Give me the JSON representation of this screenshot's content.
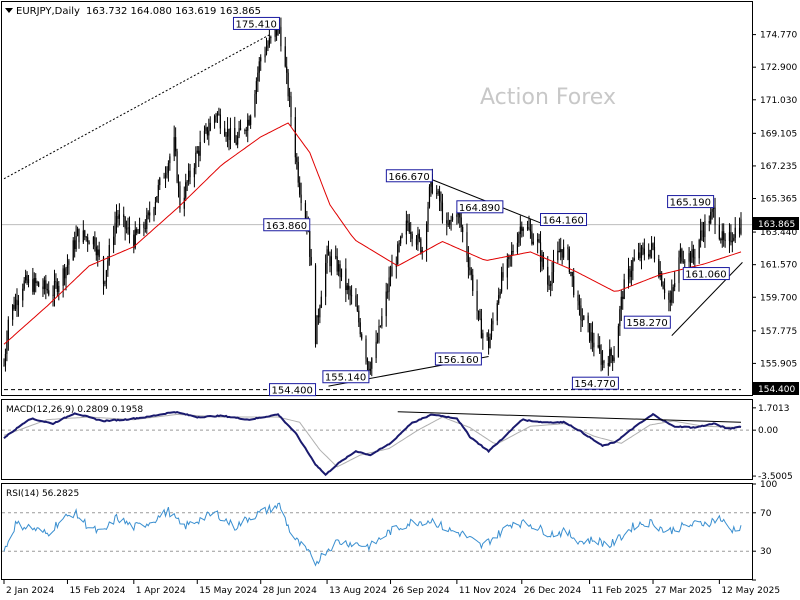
{
  "header": {
    "symbol_line": "EURJPY,Daily",
    "ohlc": "163.732 164.080 163.619 163.865"
  },
  "watermark": "Action Forex",
  "colors": {
    "candles": "#000000",
    "ma": "#e00000",
    "macd": "#1a1a6e",
    "signal": "#b0b0b0",
    "rsi": "#3a8fd0",
    "label_border": "#1a1aa0",
    "level_line": "#000000"
  },
  "chart_data": [
    {
      "type": "line",
      "title": "EURJPY,Daily",
      "subtitle": "163.732 164.080 163.619 163.865",
      "x_ticks": [
        "2 Jan 2024",
        "15 Feb 2024",
        "1 Apr 2024",
        "15 May 2024",
        "28 Jun 2024",
        "13 Aug 2024",
        "26 Sep 2024",
        "11 Nov 2024",
        "26 Dec 2024",
        "11 Feb 2025",
        "27 Mar 2025",
        "12 May 2025"
      ],
      "y_ticks": [
        155.905,
        157.775,
        159.7,
        161.57,
        163.44,
        165.365,
        167.235,
        169.105,
        171.03,
        172.9,
        174.77
      ],
      "ylim": [
        154.035,
        176.64
      ],
      "price_marker": "163.865",
      "level_marker": "154.400",
      "close_anchors": [
        [
          "2 Jan 2024",
          155.8
        ],
        [
          "5 Jan 2024",
          158.5
        ],
        [
          "15 Jan 2024",
          160.5
        ],
        [
          "25 Jan 2024",
          160.4
        ],
        [
          "5 Feb 2024",
          160.0
        ],
        [
          "15 Feb 2024",
          161.6
        ],
        [
          "22 Feb 2024",
          163.3
        ],
        [
          "5 Mar 2024",
          163.0
        ],
        [
          "11 Mar 2024",
          160.6
        ],
        [
          "20 Mar 2024",
          164.4
        ],
        [
          "1 Apr 2024",
          163.0
        ],
        [
          "10 Apr 2024",
          164.0
        ],
        [
          "29 Apr 2024",
          168.5
        ],
        [
          "3 May 2024",
          165.0
        ],
        [
          "15 May 2024",
          168.0
        ],
        [
          "28 May 2024",
          170.3
        ],
        [
          "10 Jun 2024",
          168.5
        ],
        [
          "20 Jun 2024",
          170.0
        ],
        [
          "28 Jun 2024",
          173.5
        ],
        [
          "11 Jul 2024",
          175.2
        ],
        [
          "17 Jul 2024",
          171.5
        ],
        [
          "25 Jul 2024",
          166.0
        ],
        [
          "31 Jul 2024",
          163.6
        ],
        [
          "5 Aug 2024",
          157.5
        ],
        [
          "10 Aug 2024",
          160.8
        ],
        [
          "13 Aug 2024",
          162.0
        ],
        [
          "20 Aug 2024",
          161.5
        ],
        [
          "26 Aug 2024",
          160.3
        ],
        [
          "2 Sep 2024",
          159.0
        ],
        [
          "11 Sep 2024",
          155.8
        ],
        [
          "16 Sep 2024",
          156.8
        ],
        [
          "26 Sep 2024",
          161.0
        ],
        [
          "8 Oct 2024",
          164.0
        ],
        [
          "18 Oct 2024",
          162.5
        ],
        [
          "24 Oct 2024",
          166.3
        ],
        [
          "30 Oct 2024",
          165.2
        ],
        [
          "4 Nov 2024",
          163.5
        ],
        [
          "11 Nov 2024",
          164.8
        ],
        [
          "18 Nov 2024",
          162.3
        ],
        [
          "27 Nov 2024",
          158.0
        ],
        [
          "3 Dec 2024",
          157.0
        ],
        [
          "11 Dec 2024",
          160.5
        ],
        [
          "16 Dec 2024",
          161.4
        ],
        [
          "26 Dec 2024",
          164.0
        ],
        [
          "6 Jan 2025",
          162.8
        ],
        [
          "13 Jan 2025",
          160.5
        ],
        [
          "22 Jan 2025",
          162.5
        ],
        [
          "27 Jan 2025",
          162.0
        ],
        [
          "3 Feb 2025",
          159.0
        ],
        [
          "11 Feb 2025",
          157.6
        ],
        [
          "20 Feb 2025",
          156.0
        ],
        [
          "28 Feb 2025",
          156.5
        ],
        [
          "6 Mar 2025",
          160.0
        ],
        [
          "13 Mar 2025",
          161.7
        ],
        [
          "21 Mar 2025",
          162.3
        ],
        [
          "27 Mar 2025",
          162.5
        ],
        [
          "3 Apr 2025",
          160.5
        ],
        [
          "8 Apr 2025",
          159.3
        ],
        [
          "15 Apr 2025",
          162.2
        ],
        [
          "24 Apr 2025",
          162.0
        ],
        [
          "30 Apr 2025",
          163.5
        ],
        [
          "8 May 2025",
          164.6
        ],
        [
          "12 May 2025",
          163.5
        ],
        [
          "16 May 2025",
          162.5
        ],
        [
          "22 May 2025",
          163.5
        ],
        [
          "27 May 2025",
          163.9
        ]
      ],
      "ma_anchors": [
        [
          "2 Jan 2024",
          157.0
        ],
        [
          "1 Feb 2024",
          159.2
        ],
        [
          "1 Mar 2024",
          161.5
        ],
        [
          "1 Apr 2024",
          162.6
        ],
        [
          "1 May 2024",
          164.8
        ],
        [
          "1 Jun 2024",
          167.3
        ],
        [
          "28 Jun 2024",
          168.9
        ],
        [
          "17 Jul 2024",
          169.7
        ],
        [
          "1 Aug 2024",
          168.0
        ],
        [
          "15 Aug 2024",
          165.0
        ],
        [
          "1 Sep 2024",
          163.0
        ],
        [
          "1 Oct 2024",
          161.5
        ],
        [
          "1 Nov 2024",
          162.9
        ],
        [
          "1 Dec 2024",
          161.8
        ],
        [
          "1 Jan 2025",
          162.3
        ],
        [
          "1 Feb 2025",
          161.2
        ],
        [
          "1 Mar 2025",
          160.0
        ],
        [
          "1 Apr 2025",
          161.0
        ],
        [
          "1 May 2025",
          161.6
        ],
        [
          "27 May 2025",
          162.3
        ]
      ],
      "annotations": [
        {
          "text": "175.410",
          "date": "11 Jul 2024",
          "value": 175.41,
          "side": "left"
        },
        {
          "text": "163.860",
          "date": "1 Aug 2024",
          "value": 163.86,
          "side": "left"
        },
        {
          "text": "166.670",
          "date": "25 Oct 2024",
          "value": 166.67,
          "side": "left"
        },
        {
          "text": "164.890",
          "date": "11 Nov 2024",
          "value": 164.89,
          "side": "right"
        },
        {
          "text": "164.160",
          "date": "8 Jan 2025",
          "value": 164.16,
          "side": "right"
        },
        {
          "text": "165.190",
          "date": "8 May 2025",
          "value": 165.19,
          "side": "left"
        },
        {
          "text": "161.060",
          "date": "17 Apr 2025",
          "value": 161.06,
          "side": "right"
        },
        {
          "text": "158.270",
          "date": "8 Apr 2025",
          "value": 158.27,
          "side": "left"
        },
        {
          "text": "156.160",
          "date": "28 Nov 2024",
          "value": 156.16,
          "side": "left"
        },
        {
          "text": "155.140",
          "date": "11 Sep 2024",
          "value": 155.14,
          "side": "left"
        },
        {
          "text": "154.400",
          "date": "5 Aug 2024",
          "value": 154.4,
          "side": "left"
        },
        {
          "text": "154.770",
          "date": "3 Mar 2025",
          "value": 154.77,
          "side": "left"
        }
      ],
      "trendlines": [
        {
          "from": [
            "2 Jan 2024",
            166.5
          ],
          "to": [
            "5 Jul 2024",
            174.8
          ],
          "style": "dotted"
        },
        {
          "from": [
            "8 Oct 2024",
            167.0
          ],
          "to": [
            "10 Jan 2025",
            163.9
          ],
          "style": "solid"
        },
        {
          "from": [
            "14 Aug 2024",
            154.6
          ],
          "to": [
            "3 Dec 2024",
            156.3
          ],
          "style": "solid"
        },
        {
          "from": [
            "9 Apr 2025",
            157.5
          ],
          "to": [
            "28 May 2025",
            161.7
          ],
          "style": "solid"
        },
        {
          "from": [
            "2 Jan 2024",
            154.4
          ],
          "to": [
            "27 May 2025",
            154.4
          ],
          "style": "dashed"
        }
      ]
    },
    {
      "type": "line",
      "title": "MACD(12,26,9) 0.2809 0.1958",
      "y_ticks": [
        "1.7013",
        "0.00",
        "-3.5005"
      ],
      "ylim": [
        -3.8,
        2.3
      ],
      "macd_anchors": [
        [
          "2 Jan 2024",
          -0.6
        ],
        [
          "20 Jan 2024",
          0.9
        ],
        [
          "5 Feb 2024",
          0.5
        ],
        [
          "20 Feb 2024",
          1.3
        ],
        [
          "10 Mar 2024",
          0.7
        ],
        [
          "25 Mar 2024",
          0.8
        ],
        [
          "10 Apr 2024",
          1.0
        ],
        [
          "29 Apr 2024",
          1.4
        ],
        [
          "15 May 2024",
          1.0
        ],
        [
          "1 Jun 2024",
          1.1
        ],
        [
          "20 Jun 2024",
          0.8
        ],
        [
          "10 Jul 2024",
          1.2
        ],
        [
          "22 Jul 2024",
          -0.2
        ],
        [
          "5 Aug 2024",
          -2.6
        ],
        [
          "12 Aug 2024",
          -3.4
        ],
        [
          "20 Aug 2024",
          -2.6
        ],
        [
          "2 Sep 2024",
          -1.6
        ],
        [
          "12 Sep 2024",
          -1.9
        ],
        [
          "26 Sep 2024",
          -1.0
        ],
        [
          "10 Oct 2024",
          0.5
        ],
        [
          "25 Oct 2024",
          1.2
        ],
        [
          "11 Nov 2024",
          0.9
        ],
        [
          "20 Nov 2024",
          -0.5
        ],
        [
          "3 Dec 2024",
          -1.6
        ],
        [
          "15 Dec 2024",
          -0.4
        ],
        [
          "26 Dec 2024",
          0.8
        ],
        [
          "10 Jan 2025",
          0.6
        ],
        [
          "25 Jan 2025",
          0.6
        ],
        [
          "5 Feb 2025",
          -0.1
        ],
        [
          "20 Feb 2025",
          -1.2
        ],
        [
          "1 Mar 2025",
          -0.9
        ],
        [
          "15 Mar 2025",
          0.3
        ],
        [
          "27 Mar 2025",
          1.2
        ],
        [
          "10 Apr 2025",
          0.3
        ],
        [
          "25 Apr 2025",
          0.2
        ],
        [
          "8 May 2025",
          0.5
        ],
        [
          "18 May 2025",
          0.1
        ],
        [
          "27 May 2025",
          0.28
        ]
      ],
      "signal_anchors": [
        [
          "2 Jan 2024",
          -0.4
        ],
        [
          "1 Feb 2024",
          0.8
        ],
        [
          "1 Mar 2024",
          1.0
        ],
        [
          "1 Apr 2024",
          0.8
        ],
        [
          "1 May 2024",
          1.2
        ],
        [
          "1 Jun 2024",
          1.0
        ],
        [
          "10 Jul 2024",
          1.0
        ],
        [
          "25 Jul 2024",
          0.6
        ],
        [
          "8 Aug 2024",
          -1.5
        ],
        [
          "20 Aug 2024",
          -2.8
        ],
        [
          "5 Sep 2024",
          -1.9
        ],
        [
          "25 Sep 2024",
          -1.4
        ],
        [
          "15 Oct 2024",
          0.0
        ],
        [
          "1 Nov 2024",
          1.0
        ],
        [
          "20 Nov 2024",
          0.2
        ],
        [
          "8 Dec 2024",
          -1.1
        ],
        [
          "1 Jan 2025",
          0.3
        ],
        [
          "25 Jan 2025",
          0.5
        ],
        [
          "15 Feb 2025",
          -0.5
        ],
        [
          "5 Mar 2025",
          -1.0
        ],
        [
          "25 Mar 2025",
          0.4
        ],
        [
          "10 Apr 2025",
          0.7
        ],
        [
          "1 May 2025",
          0.3
        ],
        [
          "27 May 2025",
          0.2
        ]
      ],
      "trendline": {
        "from": [
          "1 Oct 2024",
          1.4
        ],
        "to": [
          "27 May 2025",
          0.6
        ]
      }
    },
    {
      "type": "line",
      "title": "RSI(14) 56.2825",
      "y_ticks": [
        "100",
        "70",
        "30",
        "0"
      ],
      "ylim": [
        0,
        100
      ],
      "rsi_anchors": [
        [
          "2 Jan 2024",
          30
        ],
        [
          "10 Jan 2024",
          58
        ],
        [
          "20 Jan 2024",
          55
        ],
        [
          "1 Feb 2024",
          48
        ],
        [
          "10 Feb 2024",
          62
        ],
        [
          "20 Feb 2024",
          70
        ],
        [
          "1 Mar 2024",
          55
        ],
        [
          "10 Mar 2024",
          48
        ],
        [
          "20 Mar 2024",
          65
        ],
        [
          "1 Apr 2024",
          55
        ],
        [
          "12 Apr 2024",
          60
        ],
        [
          "25 Apr 2024",
          72
        ],
        [
          "5 May 2024",
          55
        ],
        [
          "15 May 2024",
          62
        ],
        [
          "28 May 2024",
          70
        ],
        [
          "10 Jun 2024",
          55
        ],
        [
          "20 Jun 2024",
          65
        ],
        [
          "1 Jul 2024",
          72
        ],
        [
          "11 Jul 2024",
          78
        ],
        [
          "20 Jul 2024",
          45
        ],
        [
          "30 Jul 2024",
          30
        ],
        [
          "5 Aug 2024",
          18
        ],
        [
          "12 Aug 2024",
          30
        ],
        [
          "20 Aug 2024",
          40
        ],
        [
          "1 Sep 2024",
          38
        ],
        [
          "12 Sep 2024",
          35
        ],
        [
          "25 Sep 2024",
          50
        ],
        [
          "10 Oct 2024",
          60
        ],
        [
          "25 Oct 2024",
          62
        ],
        [
          "5 Nov 2024",
          52
        ],
        [
          "15 Nov 2024",
          48
        ],
        [
          "28 Nov 2024",
          35
        ],
        [
          "10 Dec 2024",
          48
        ],
        [
          "20 Dec 2024",
          60
        ],
        [
          "1 Jan 2025",
          58
        ],
        [
          "15 Jan 2025",
          48
        ],
        [
          "25 Jan 2025",
          50
        ],
        [
          "5 Feb 2025",
          40
        ],
        [
          "15 Feb 2025",
          42
        ],
        [
          "25 Feb 2025",
          36
        ],
        [
          "5 Mar 2025",
          45
        ],
        [
          "15 Mar 2025",
          58
        ],
        [
          "27 Mar 2025",
          60
        ],
        [
          "5 Apr 2025",
          50
        ],
        [
          "15 Apr 2025",
          55
        ],
        [
          "25 Apr 2025",
          58
        ],
        [
          "5 May 2025",
          60
        ],
        [
          "12 May 2025",
          65
        ],
        [
          "20 May 2025",
          52
        ],
        [
          "27 May 2025",
          56
        ]
      ]
    }
  ]
}
